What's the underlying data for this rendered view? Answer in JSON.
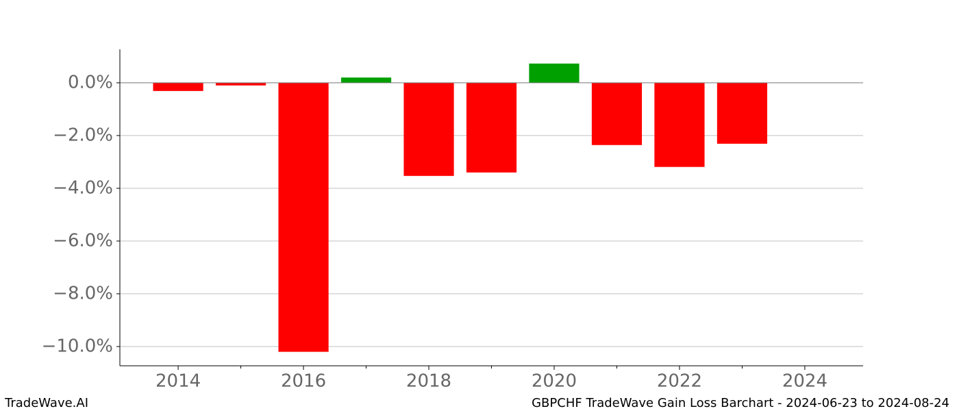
{
  "chart_data": {
    "type": "bar",
    "title": "GBPCHF TradeWave Gain Loss Barchart - 2024-06-23 to 2024-08-24",
    "brand": "TradeWave.AI",
    "x": [
      2014,
      2015,
      2016,
      2017,
      2018,
      2019,
      2020,
      2021,
      2022,
      2023
    ],
    "values": [
      -0.31,
      -0.1,
      -10.2,
      0.2,
      -3.53,
      -3.4,
      0.73,
      -2.36,
      -3.19,
      -2.31
    ],
    "positive_color": "#00a000",
    "negative_color": "#ff0000",
    "xlim": [
      2013.07,
      2024.93
    ],
    "xticks": [
      2014,
      2016,
      2018,
      2020,
      2022,
      2024
    ],
    "xminorticks": [
      2015,
      2017,
      2019,
      2021,
      2023
    ],
    "ylim": [
      -10.73,
      1.27
    ],
    "yticks": [
      {
        "value": 0,
        "label": "0.0%"
      },
      {
        "value": -2,
        "label": "−2.0%"
      },
      {
        "value": -4,
        "label": "−4.0%"
      },
      {
        "value": -6,
        "label": "−6.0%"
      },
      {
        "value": -8,
        "label": "−8.0%"
      },
      {
        "value": -10,
        "label": "−10.0%"
      }
    ],
    "grid": true
  }
}
